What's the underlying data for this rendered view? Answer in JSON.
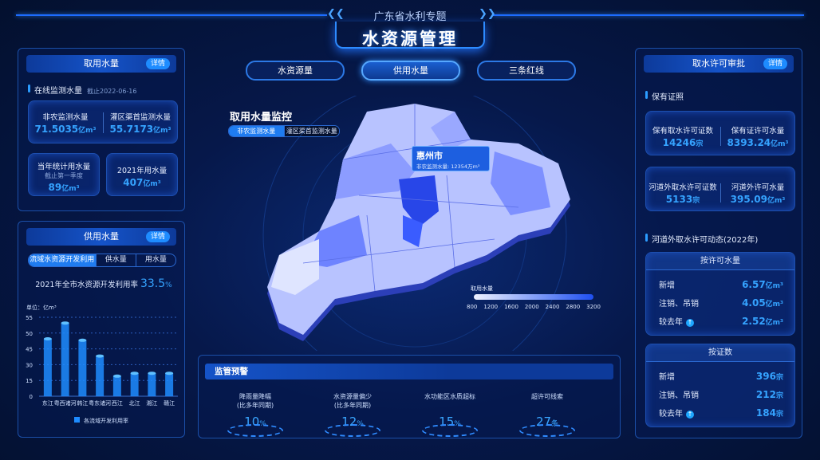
{
  "header": {
    "subtitle": "广东省水利专题",
    "title": "水资源管理"
  },
  "tabs": [
    {
      "label": "水资源量",
      "active": false
    },
    {
      "label": "供用水量",
      "active": true
    },
    {
      "label": "三条红线",
      "active": false
    }
  ],
  "left_top": {
    "title": "取用水量",
    "detail": "详情",
    "section": "在线监测水量",
    "section_date": "截止2022-06-16",
    "items": [
      {
        "label": "非农监测水量",
        "value": "71.5035",
        "unit": "亿m³"
      },
      {
        "label": "灌区渠首监测水量",
        "value": "55.7173",
        "unit": "亿m³"
      },
      {
        "label": "当年统计用水量",
        "note": "截止第一季度",
        "value": "89",
        "unit": "亿m³"
      },
      {
        "label": "2021年用水量",
        "value": "407",
        "unit": "亿m³"
      }
    ]
  },
  "left_bottom": {
    "title": "供用水量",
    "detail": "详情",
    "tabs": [
      "流域水资源开发利用",
      "供水量",
      "用水量"
    ],
    "rate_label": "2021年全市水资源开发利用率",
    "rate_value": "33.5",
    "rate_unit": "%"
  },
  "chart_data": {
    "type": "bar",
    "ylabel": "单位：亿m³",
    "categories": [
      "东江",
      "粤西诸河",
      "韩江",
      "粤东诸河",
      "西江",
      "北江",
      "湘江",
      "赣江"
    ],
    "values": [
      40,
      51,
      39,
      28,
      14,
      16,
      16,
      16
    ],
    "ytick_labels": [
      "0",
      "15",
      "30",
      "45",
      "50",
      "55"
    ],
    "legend": "各流域开发利用率",
    "legend_position": "bottom",
    "grid": true,
    "color": "#1e8cff"
  },
  "map": {
    "title": "取用水量监控",
    "toggle": [
      "非农监测水量",
      "灌区渠首监测水量"
    ],
    "tooltip_city": "惠州市",
    "tooltip_label": "非农监测水量:",
    "tooltip_value": "12354",
    "tooltip_unit": "万m³",
    "legend_title": "取用水量",
    "legend_ticks": [
      "800",
      "1200",
      "1600",
      "2000",
      "2400",
      "2800",
      "3200"
    ]
  },
  "warning": {
    "title": "监管预警",
    "items": [
      {
        "l1": "降雨量降幅",
        "l2": "(比多年同期)",
        "value": "10",
        "unit": "%"
      },
      {
        "l1": "水资源量偏少",
        "l2": "(比多年同期)",
        "value": "12",
        "unit": "%"
      },
      {
        "l1": "水功能区水质超标",
        "l2": "",
        "value": "15",
        "unit": "%"
      },
      {
        "l1": "超许可线索",
        "l2": "",
        "value": "27",
        "unit": "条"
      }
    ]
  },
  "right": {
    "title": "取水许可审批",
    "detail": "详情",
    "section1": "保有证照",
    "cards": [
      {
        "label": "保有取水许可证数",
        "value": "14246",
        "unit": "宗"
      },
      {
        "label": "保有证许可水量",
        "value": "8393.24",
        "unit": "亿m³"
      },
      {
        "label": "河道外取水许可证数",
        "value": "5133",
        "unit": "宗"
      },
      {
        "label": "河道外许可水量",
        "value": "395.09",
        "unit": "亿m³"
      }
    ],
    "section2": "河道外取水许可动态(2022年)",
    "box1": {
      "title": "按许可水量",
      "rows": [
        {
          "label": "新增",
          "value": "6.57",
          "unit": "亿m³"
        },
        {
          "label": "注销、吊销",
          "value": "4.05",
          "unit": "亿m³"
        },
        {
          "label": "较去年",
          "value": "2.52",
          "unit": "亿m³",
          "up": true
        }
      ]
    },
    "box2": {
      "title": "按证数",
      "rows": [
        {
          "label": "新增",
          "value": "396",
          "unit": "宗"
        },
        {
          "label": "注销、吊销",
          "value": "212",
          "unit": "宗"
        },
        {
          "label": "较去年",
          "value": "184",
          "unit": "宗",
          "up": true
        }
      ]
    }
  }
}
